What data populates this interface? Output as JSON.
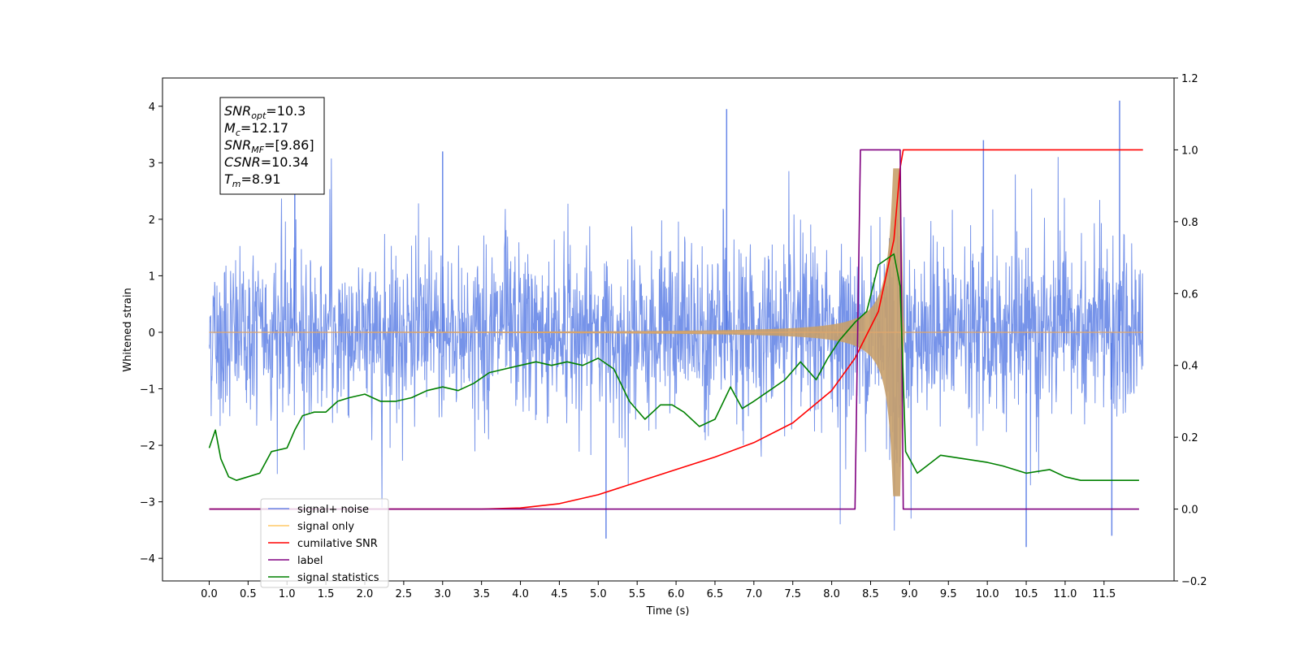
{
  "chart_data": {
    "type": "line",
    "xlabel": "Time (s)",
    "ylabel_left": "Whitened strain",
    "xlim": [
      -0.6,
      12.4
    ],
    "ylim_left": [
      -4.4,
      4.5
    ],
    "ylim_right": [
      -0.2,
      1.2
    ],
    "x_ticks": [
      0.0,
      0.5,
      1.0,
      1.5,
      2.0,
      2.5,
      3.0,
      3.5,
      4.0,
      4.5,
      5.0,
      5.5,
      6.0,
      6.5,
      7.0,
      7.5,
      8.0,
      8.5,
      9.0,
      9.5,
      10.0,
      10.5,
      11.0,
      11.5
    ],
    "x_tick_labels": [
      "0.0",
      "0.5",
      "1.0",
      "1.5",
      "2.0",
      "2.5",
      "3.0",
      "3.5",
      "4.0",
      "4.5",
      "5.0",
      "5.5",
      "6.0",
      "6.5",
      "7.0",
      "7.5",
      "8.0",
      "8.5",
      "9.0",
      "9.5",
      "10.0",
      "10.5",
      "11.0",
      "11.5"
    ],
    "y_left_ticks": [
      4,
      3,
      2,
      1,
      0,
      -1,
      -2,
      -3,
      -4
    ],
    "y_left_tick_labels": [
      "4",
      "3",
      "2",
      "1",
      "0",
      "−1",
      "−2",
      "−3",
      "−4"
    ],
    "y_right_ticks": [
      1.2,
      1.0,
      0.8,
      0.6,
      0.4,
      0.2,
      0.0,
      -0.2
    ],
    "y_right_tick_labels": [
      "1.2",
      "1.0",
      "0.8",
      "0.6",
      "0.4",
      "0.2",
      "0.0",
      "−0.2"
    ],
    "grid": false,
    "legend_position": "lower-left",
    "stats_box": {
      "lines": [
        {
          "main": "SNR",
          "sub": "opt",
          "rest": "=10.3"
        },
        {
          "main": "M",
          "sub": "c",
          "rest": "=12.17"
        },
        {
          "main": "SNR",
          "sub": "MF",
          "rest": "=[9.86]"
        },
        {
          "main": "CSNR",
          "sub": "",
          "rest": "=10.34"
        },
        {
          "main": "T",
          "sub": "m",
          "rest": "=8.91"
        }
      ]
    },
    "series": [
      {
        "name": "signal+ noise",
        "axis": "left",
        "color": "#4169e1",
        "kind": "noise",
        "x_range": [
          0.0,
          12.0
        ],
        "typical_range": [
          -1.9,
          2.4
        ],
        "extreme_max": 4.1,
        "extreme_min": -3.8
      },
      {
        "name": "signal only",
        "axis": "left",
        "color": "#ffa500",
        "kind": "chirp",
        "x_range": [
          0.0,
          12.0
        ],
        "peak_time": 8.88,
        "peak_amplitude": 2.9
      },
      {
        "name": "cumilative SNR",
        "axis": "right",
        "color": "#ff0000",
        "x": [
          0.0,
          3.0,
          3.5,
          4.0,
          4.5,
          5.0,
          5.5,
          6.0,
          6.5,
          7.0,
          7.5,
          8.0,
          8.3,
          8.6,
          8.8,
          8.88,
          8.92,
          12.0
        ],
        "values": [
          0.0,
          0.0,
          0.0,
          0.003,
          0.015,
          0.04,
          0.075,
          0.11,
          0.145,
          0.185,
          0.24,
          0.33,
          0.42,
          0.55,
          0.75,
          0.95,
          1.0,
          1.0
        ]
      },
      {
        "name": "label",
        "axis": "right",
        "color": "#800080",
        "x": [
          0.0,
          8.3,
          8.37,
          8.88,
          8.92,
          11.95
        ],
        "values": [
          0.0,
          0.0,
          1.0,
          1.0,
          0.0,
          0.0
        ]
      },
      {
        "name": "signal statistics",
        "axis": "right",
        "color": "#008000",
        "x": [
          0.0,
          0.08,
          0.15,
          0.25,
          0.35,
          0.5,
          0.65,
          0.8,
          1.0,
          1.1,
          1.2,
          1.35,
          1.5,
          1.65,
          1.8,
          2.0,
          2.2,
          2.4,
          2.6,
          2.8,
          3.0,
          3.2,
          3.4,
          3.6,
          3.8,
          4.0,
          4.2,
          4.4,
          4.6,
          4.8,
          5.0,
          5.2,
          5.4,
          5.6,
          5.8,
          5.95,
          6.1,
          6.3,
          6.5,
          6.7,
          6.85,
          7.0,
          7.2,
          7.4,
          7.6,
          7.8,
          7.95,
          8.1,
          8.3,
          8.45,
          8.6,
          8.8,
          8.88,
          8.95,
          9.1,
          9.4,
          9.7,
          10.0,
          10.2,
          10.5,
          10.8,
          11.0,
          11.2,
          11.4,
          11.6,
          11.8,
          11.95
        ],
        "values": [
          0.17,
          0.22,
          0.14,
          0.09,
          0.08,
          0.09,
          0.1,
          0.16,
          0.17,
          0.22,
          0.26,
          0.27,
          0.27,
          0.3,
          0.31,
          0.32,
          0.3,
          0.3,
          0.31,
          0.33,
          0.34,
          0.33,
          0.35,
          0.38,
          0.39,
          0.4,
          0.41,
          0.4,
          0.41,
          0.4,
          0.42,
          0.39,
          0.3,
          0.25,
          0.29,
          0.29,
          0.27,
          0.23,
          0.25,
          0.34,
          0.28,
          0.3,
          0.33,
          0.36,
          0.41,
          0.36,
          0.42,
          0.47,
          0.52,
          0.55,
          0.68,
          0.71,
          0.62,
          0.16,
          0.1,
          0.15,
          0.14,
          0.13,
          0.12,
          0.1,
          0.11,
          0.09,
          0.08,
          0.08,
          0.08,
          0.08,
          0.08
        ]
      }
    ]
  }
}
